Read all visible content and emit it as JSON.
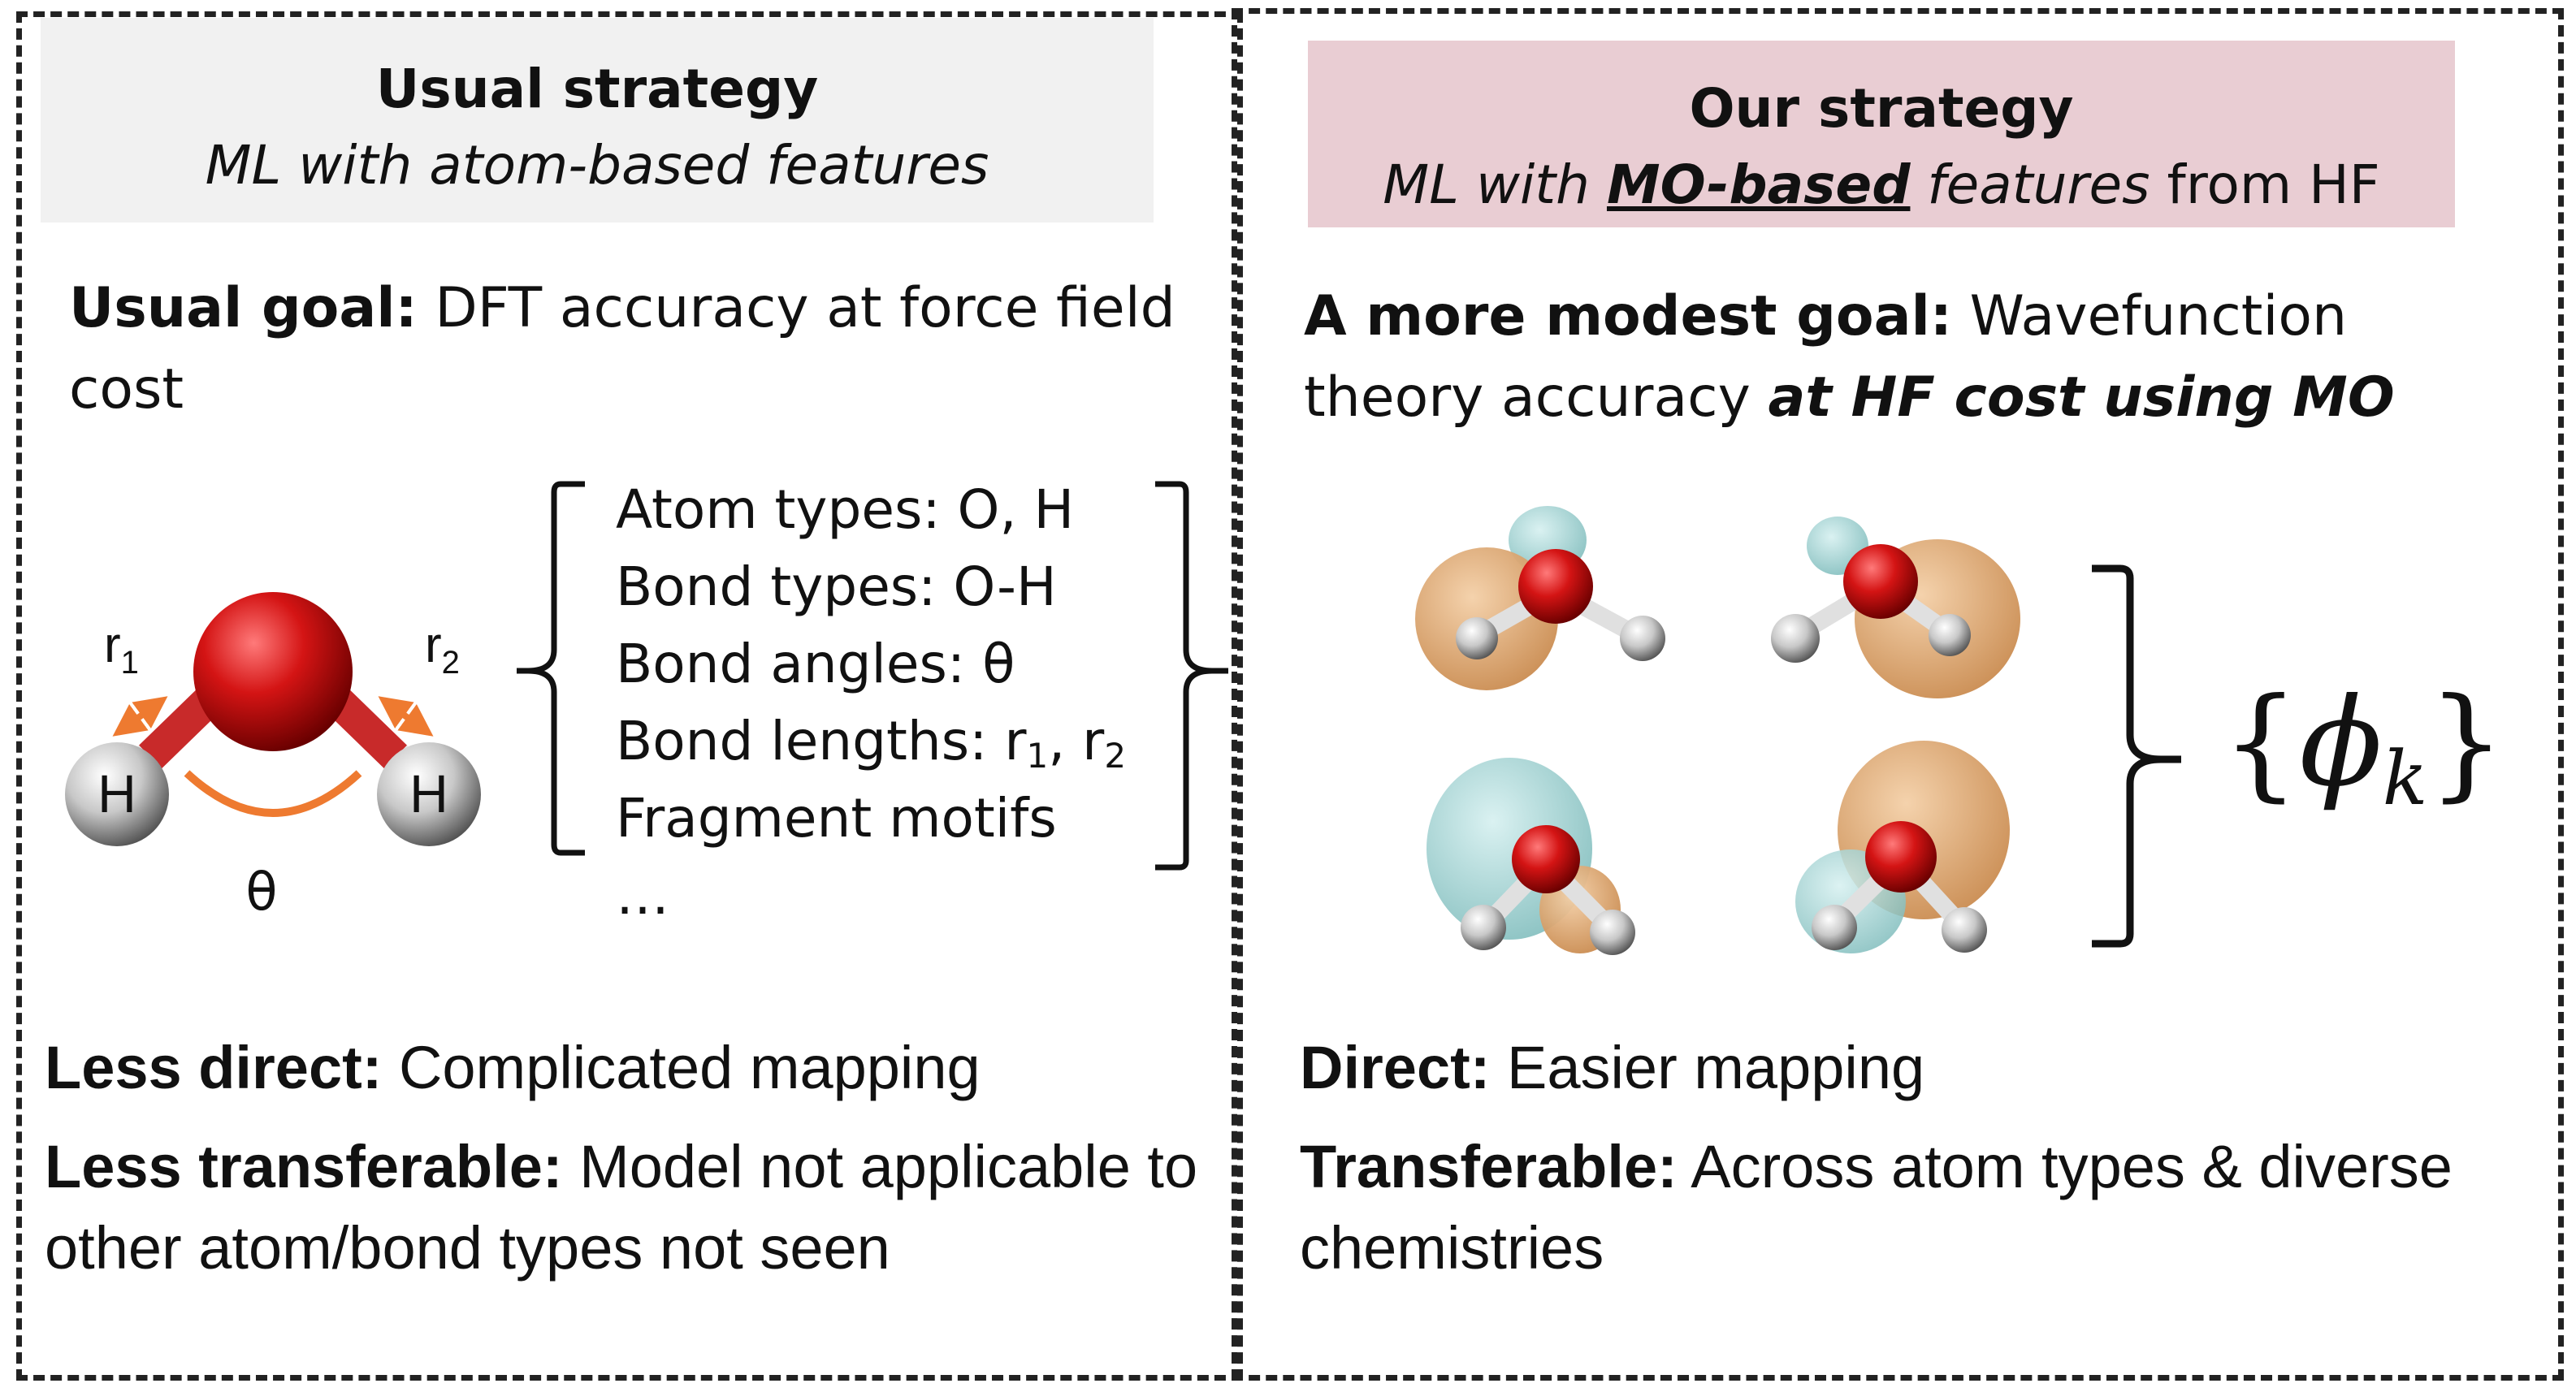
{
  "left": {
    "header_title": "Usual strategy",
    "header_subtitle": "ML with atom-based features",
    "goal_label": "Usual goal:",
    "goal_text": "DFT accuracy at force field cost",
    "molecule": {
      "atom_o": "",
      "atom_h1": "H",
      "atom_h2": "H",
      "r1": "r",
      "r1_sub": "1",
      "r2": "r",
      "r2_sub": "2",
      "theta": "θ"
    },
    "features": {
      "atom_types": "Atom types: O, H",
      "bond_types": "Bond types: O-H",
      "bond_angles": "Bond angles: θ",
      "bond_lengths_prefix": "Bond lengths: r",
      "bond_lengths_sub1": "1",
      "bond_lengths_mid": ", r",
      "bond_lengths_sub2": "2",
      "fragment_motifs": "Fragment motifs",
      "ellipsis": "…"
    },
    "less_direct_label": "Less direct:",
    "less_direct_text": "Complicated mapping",
    "less_transferable_label": "Less transferable:",
    "less_transferable_text": "Model not applicable to other atom/bond types not seen"
  },
  "right": {
    "header_title": "Our strategy",
    "header_sub_pre": "ML with ",
    "header_sub_emph": "MO-based",
    "header_sub_mid": " features",
    "header_sub_post": " from HF",
    "goal_label": "A more modest goal:",
    "goal_text": "Wavefunction theory accuracy ",
    "goal_emph": "at HF cost using MO",
    "phi_symbol": "ϕ",
    "phi_sub": "k",
    "direct_label": "Direct:",
    "direct_text": "Easier mapping",
    "transferable_label": "Transferable:",
    "transferable_text": "Across atom types & diverse chemistries"
  },
  "colors": {
    "left_header_bg": "#f1f1f1",
    "right_header_bg": "#e9cdd3",
    "oxygen": "#cc1010",
    "hydrogen": "#d0d0d0",
    "arrow": "#ee7a30",
    "orbital_orange": "#e2a771",
    "orbital_cyan": "#9fd3d3"
  }
}
